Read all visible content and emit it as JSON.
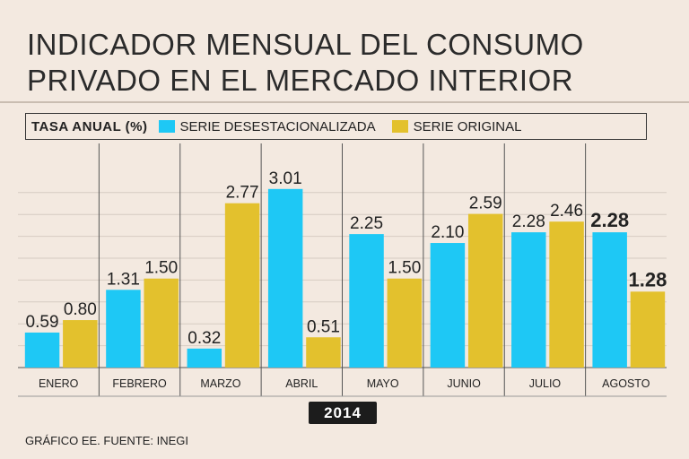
{
  "header": {
    "title_line1": "INDICADOR MENSUAL DEL CONSUMO",
    "title_line2": "PRIVADO EN EL MERCADO INTERIOR"
  },
  "legend": {
    "lead": "TASA ANUAL (%)",
    "series1": "SERIE DESESTACIONALIZADA",
    "series2": "SERIE ORIGINAL"
  },
  "year_badge": "2014",
  "source": "GRÁFICO EE. FUENTE: INEGI",
  "colors": {
    "series1": "#1ec8f5",
    "series2": "#e3c12d",
    "grid": "#d6ccc2",
    "background": "#f3e9e0"
  },
  "chart_data": {
    "type": "bar",
    "title": "",
    "xlabel": "",
    "ylabel": "",
    "categories": [
      "ENERO",
      "FEBRERO",
      "MARZO",
      "ABRIL",
      "MAYO",
      "JUNIO",
      "JULIO",
      "AGOSTO"
    ],
    "series": [
      {
        "name": "SERIE DESESTACIONALIZADA",
        "values": [
          0.59,
          1.31,
          0.32,
          3.01,
          2.25,
          2.1,
          2.28,
          2.28
        ],
        "labels": [
          "0.59",
          "1.31",
          "0.32",
          "3.01",
          "2.25",
          "2.10",
          "2.28",
          "2.28"
        ]
      },
      {
        "name": "SERIE ORIGINAL",
        "values": [
          0.8,
          1.5,
          2.77,
          0.51,
          1.5,
          2.59,
          2.46,
          1.28
        ],
        "labels": [
          "0.80",
          "1.50",
          "2.77",
          "0.51",
          "1.50",
          "2.59",
          "2.46",
          "1.28"
        ]
      }
    ],
    "ylim": [
      0,
      3.4
    ],
    "grid": true,
    "legend": "top",
    "highlight_category": "AGOSTO"
  }
}
